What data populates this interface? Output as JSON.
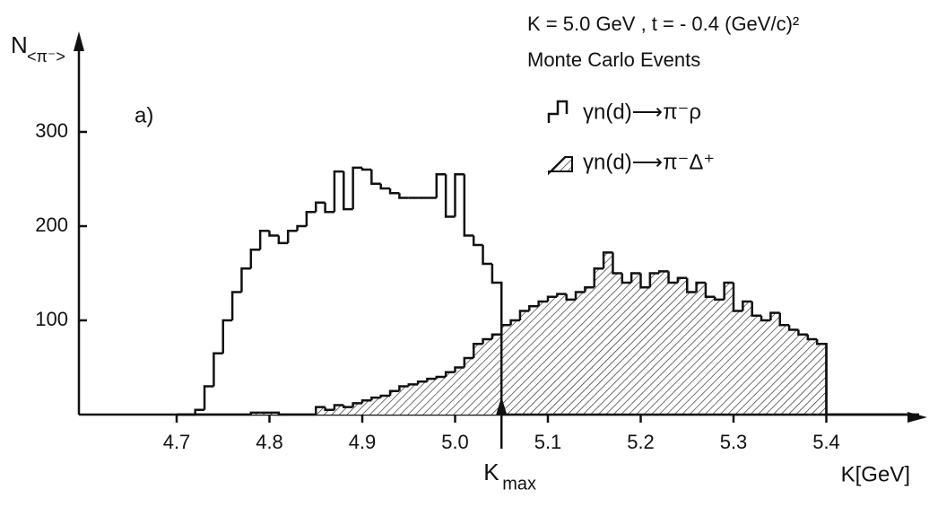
{
  "chart_data": {
    "type": "histogram",
    "title": "K = 5.0 GeV ,  t = - 0.4 (GeV/c)²",
    "subtitle": "Monte Carlo Events",
    "panel_label": "a)",
    "y_label": "N",
    "y_label_sub": "<π⁻>",
    "x_label": "K[GeV]",
    "marker": {
      "label": "K",
      "sub": "max",
      "value": 5.05
    },
    "bins": [
      4.7,
      4.71,
      4.72,
      4.73,
      4.74,
      4.75,
      4.76,
      4.77,
      4.78,
      4.79,
      4.8,
      4.81,
      4.82,
      4.83,
      4.84,
      4.85,
      4.86,
      4.87,
      4.88,
      4.89,
      4.9,
      4.91,
      4.92,
      4.93,
      4.94,
      4.95,
      4.96,
      4.97,
      4.98,
      4.99,
      5.0,
      5.01,
      5.02,
      5.03,
      5.04,
      5.05,
      5.06,
      5.07,
      5.08,
      5.09,
      5.1,
      5.11,
      5.12,
      5.13,
      5.14,
      5.15,
      5.16,
      5.17,
      5.18,
      5.19,
      5.2,
      5.21,
      5.22,
      5.23,
      5.24,
      5.25,
      5.26,
      5.27,
      5.28,
      5.29,
      5.3,
      5.31,
      5.32,
      5.33,
      5.34,
      5.35,
      5.36,
      5.37,
      5.38,
      5.39,
      5.4,
      5.41,
      5.42,
      5.43,
      5.44,
      5.45,
      5.46,
      5.47,
      5.48,
      5.49,
      5.5
    ],
    "series": [
      {
        "name": "γn(d)⟶π⁻ρ",
        "color": "#111111",
        "hatch": false,
        "values": [
          0,
          0,
          5,
          30,
          65,
          100,
          130,
          155,
          175,
          195,
          190,
          182,
          195,
          200,
          215,
          225,
          215,
          258,
          218,
          262,
          260,
          245,
          240,
          235,
          230,
          230,
          230,
          230,
          255,
          210,
          255,
          190,
          180,
          160,
          140,
          0,
          0,
          0,
          0,
          0,
          0,
          0,
          0,
          0,
          0,
          0,
          0,
          0,
          0,
          0,
          0,
          0,
          0,
          0,
          0,
          0,
          0,
          0,
          0,
          0,
          0,
          0,
          0,
          0,
          0,
          0,
          0,
          0,
          0,
          0,
          0,
          0,
          0,
          0,
          0,
          0,
          0,
          0,
          0,
          0
        ]
      },
      {
        "name": "γn(d)⟶π⁻Δ⁺",
        "color": "#111111",
        "hatch": true,
        "values": [
          0,
          0,
          0,
          0,
          0,
          0,
          0,
          0,
          2,
          2,
          2,
          0,
          0,
          0,
          0,
          8,
          5,
          10,
          8,
          12,
          15,
          18,
          20,
          25,
          30,
          32,
          35,
          38,
          40,
          45,
          50,
          60,
          75,
          80,
          85,
          95,
          100,
          110,
          115,
          120,
          125,
          128,
          122,
          130,
          135,
          155,
          172,
          150,
          140,
          150,
          135,
          150,
          152,
          140,
          145,
          130,
          140,
          125,
          122,
          140,
          110,
          120,
          105,
          100,
          108,
          95,
          90,
          85,
          80,
          75,
          0,
          0,
          0,
          0,
          0,
          0,
          0,
          0,
          0,
          0
        ]
      }
    ],
    "xlim": [
      4.6,
      5.5
    ],
    "ylim": [
      0,
      400
    ],
    "xticks": [
      4.7,
      4.8,
      4.9,
      {
        "value": 5.0,
        "label": "5.0"
      },
      5.1,
      5.2,
      5.3,
      5.4
    ],
    "yticks": [
      100,
      200,
      300
    ]
  }
}
